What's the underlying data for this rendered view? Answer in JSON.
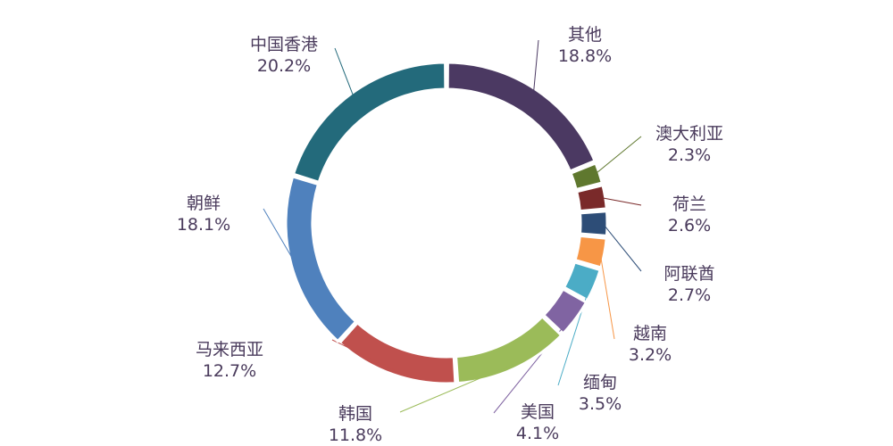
{
  "chart_data": {
    "type": "pie",
    "donut": true,
    "categories": [
      "其他",
      "澳大利亚",
      "荷兰",
      "阿联酋",
      "越南",
      "缅甸",
      "美国",
      "韩国",
      "马来西亚",
      "朝鲜",
      "中国香港"
    ],
    "values": [
      18.8,
      2.3,
      2.6,
      2.7,
      3.2,
      3.5,
      4.1,
      11.8,
      12.7,
      18.1,
      20.2
    ],
    "value_labels": [
      "18.8%",
      "2.3%",
      "2.6%",
      "2.7%",
      "3.2%",
      "3.5%",
      "4.1%",
      "11.8%",
      "12.7%",
      "18.1%",
      "20.2%"
    ],
    "colors": [
      "#4b3962",
      "#5f782e",
      "#7a2a2a",
      "#2d4d77",
      "#f79646",
      "#4bacc6",
      "#8064a2",
      "#9bbb59",
      "#c0504d",
      "#4f81bd",
      "#236a7b"
    ],
    "start_angle_deg": 0,
    "direction": "clockwise",
    "legend": "none",
    "title": ""
  }
}
